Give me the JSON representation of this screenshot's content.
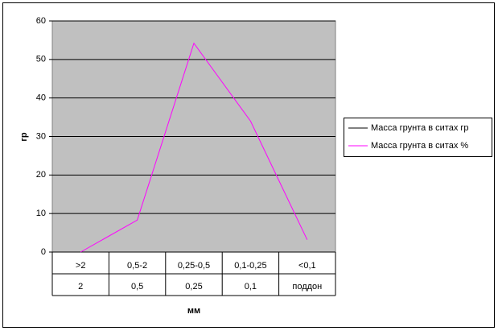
{
  "chart_data": {
    "type": "line",
    "x_label": "мм",
    "y_label": "гр",
    "categories": [
      [
        ">2",
        "2"
      ],
      [
        "0,5-2",
        "0,5"
      ],
      [
        "0,25-0,5",
        "0,25"
      ],
      [
        "0,1-0,25",
        "0,1"
      ],
      [
        "<0,1",
        "поддон"
      ]
    ],
    "series": [
      {
        "name": "Масса грунта в ситах гр",
        "color": "#000000",
        "values": [
          null,
          null,
          null,
          null,
          null
        ]
      },
      {
        "name": "Масса грунта в ситах %",
        "color": "#ff00ff",
        "values": [
          0,
          8.3,
          54.2,
          34,
          3.2
        ]
      }
    ],
    "ylim": [
      0,
      60
    ],
    "yticks": [
      0,
      10,
      20,
      30,
      40,
      50,
      60
    ],
    "grid": true,
    "legend": "right"
  }
}
